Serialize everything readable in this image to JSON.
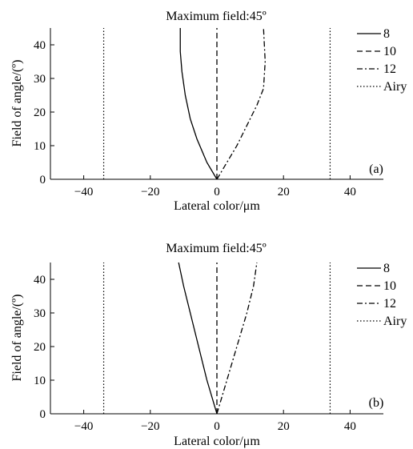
{
  "chart_data": [
    {
      "type": "line",
      "title": "Maximum field:45º",
      "xlabel": "Lateral color/μm",
      "ylabel": "Field of angle/(º)",
      "panel_label": "(a)",
      "xlim": [
        -50,
        50
      ],
      "ylim": [
        0,
        45
      ],
      "xticks": [
        -40,
        -20,
        0,
        20,
        40
      ],
      "yticks": [
        0,
        10,
        20,
        30,
        40
      ],
      "grid": false,
      "legend_position": "right",
      "series": [
        {
          "name": "8",
          "style": "solid",
          "points": [
            [
              0,
              0
            ],
            [
              -3,
              5
            ],
            [
              -6,
              12
            ],
            [
              -8,
              18
            ],
            [
              -9.5,
              25
            ],
            [
              -10.5,
              32
            ],
            [
              -11,
              38
            ],
            [
              -11,
              45
            ]
          ]
        },
        {
          "name": "10",
          "style": "dashed",
          "points": [
            [
              0,
              0
            ],
            [
              0,
              45
            ]
          ]
        },
        {
          "name": "12",
          "style": "dashdot",
          "points": [
            [
              0,
              0
            ],
            [
              3,
              5
            ],
            [
              6,
              10
            ],
            [
              9,
              16
            ],
            [
              12,
              22
            ],
            [
              14,
              27
            ],
            [
              14.5,
              35
            ],
            [
              14,
              45
            ]
          ]
        },
        {
          "name": "Airy",
          "style": "dotted",
          "lines": [
            [
              [
                -34,
                0
              ],
              [
                -34,
                45
              ]
            ],
            [
              [
                34,
                0
              ],
              [
                34,
                45
              ]
            ]
          ]
        }
      ]
    },
    {
      "type": "line",
      "title": "Maximum field:45º",
      "xlabel": "Lateral color/μm",
      "ylabel": "Field of angle/(º)",
      "panel_label": "(b)",
      "xlim": [
        -50,
        50
      ],
      "ylim": [
        0,
        45
      ],
      "xticks": [
        -40,
        -20,
        0,
        20,
        40
      ],
      "yticks": [
        0,
        10,
        20,
        30,
        40
      ],
      "grid": false,
      "legend_position": "right",
      "series": [
        {
          "name": "8",
          "style": "solid",
          "points": [
            [
              0,
              0
            ],
            [
              -3,
              10
            ],
            [
              -5.5,
              20
            ],
            [
              -8,
              30
            ],
            [
              -10,
              38
            ],
            [
              -11.5,
              45
            ]
          ]
        },
        {
          "name": "10",
          "style": "dashed",
          "points": [
            [
              0,
              0
            ],
            [
              0,
              45
            ]
          ]
        },
        {
          "name": "12",
          "style": "dashdot",
          "points": [
            [
              0,
              0
            ],
            [
              3,
              10
            ],
            [
              6,
              20
            ],
            [
              9,
              30
            ],
            [
              11,
              38
            ],
            [
              12,
              45
            ]
          ]
        },
        {
          "name": "Airy",
          "style": "dotted",
          "lines": [
            [
              [
                -34,
                0
              ],
              [
                -34,
                45
              ]
            ],
            [
              [
                34,
                0
              ],
              [
                34,
                45
              ]
            ]
          ]
        }
      ]
    }
  ]
}
